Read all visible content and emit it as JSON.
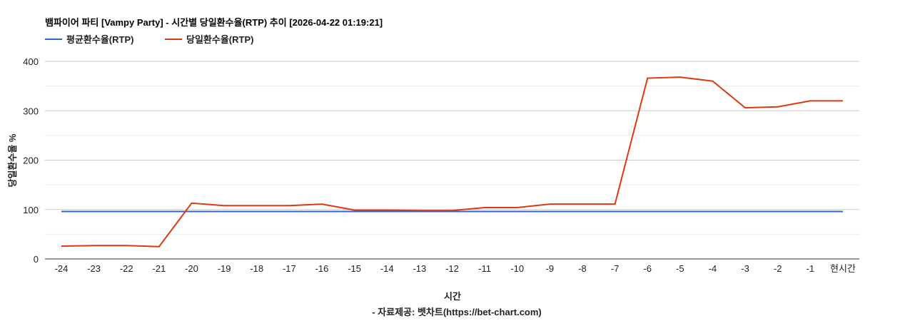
{
  "chart_data": {
    "type": "line",
    "title": "뱀파이어 파티 [Vampy Party] - 시간별 당일환수율(RTP) 추이 [2026-04-22 01:19:21]",
    "xlabel": "시간",
    "source": "- 자료제공: 벳차트(https://bet-chart.com)",
    "ylabel": "당일환수율 %",
    "ylim": [
      0,
      400
    ],
    "yticks": [
      0,
      100,
      200,
      300,
      400
    ],
    "grid": true,
    "legend": "top-left",
    "categories": [
      "-24",
      "-23",
      "-22",
      "-21",
      "-20",
      "-19",
      "-18",
      "-17",
      "-16",
      "-15",
      "-14",
      "-13",
      "-12",
      "-11",
      "-10",
      "-9",
      "-8",
      "-7",
      "-6",
      "-5",
      "-4",
      "-3",
      "-2",
      "-1",
      "현시간"
    ],
    "series": [
      {
        "name": "평균환수율(RTP)",
        "color": "#3366cc",
        "values": [
          96,
          96,
          96,
          96,
          96,
          96,
          96,
          96,
          96,
          96,
          96,
          96,
          96,
          96,
          96,
          96,
          96,
          96,
          96,
          96,
          96,
          96,
          96,
          96,
          96
        ]
      },
      {
        "name": "당일환수율(RTP)",
        "color": "#dc3912",
        "values": [
          26,
          27,
          27,
          25,
          113,
          108,
          108,
          108,
          111,
          99,
          99,
          98,
          98,
          104,
          104,
          111,
          111,
          111,
          366,
          368,
          360,
          306,
          308,
          320,
          320
        ]
      }
    ]
  }
}
